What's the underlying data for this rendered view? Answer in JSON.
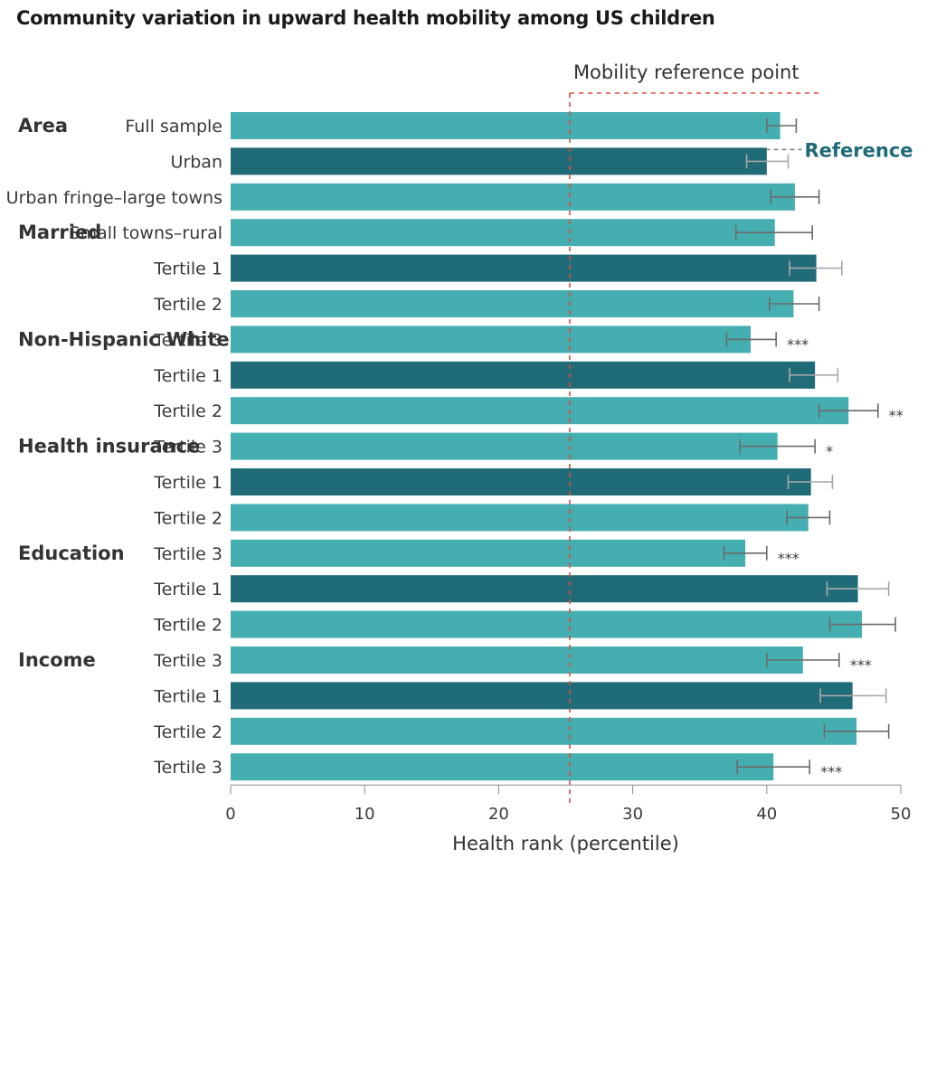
{
  "chart_data": {
    "type": "bar",
    "orientation": "horizontal",
    "title": "Community variation in upward health mobility among US children",
    "xlabel": "Health rank (percentile)",
    "xlim": [
      0,
      50
    ],
    "xticks": [
      0,
      10,
      20,
      30,
      40,
      50
    ],
    "grid": false,
    "reference_line": {
      "value": 25.3,
      "label": "Mobility reference point",
      "color": "#e04a3c"
    },
    "reference_label": "Reference",
    "colors": {
      "reference": "#1f6b77",
      "comparison": "#45aeb1",
      "error_bar": "#6b6b6b",
      "reference_error_bar": "#a9a9a9"
    },
    "rows": [
      {
        "group": "",
        "label": "Full sample",
        "value": 41.0,
        "ci": [
          40.0,
          42.2
        ],
        "is_reference": false,
        "sig": ""
      },
      {
        "group": "Area",
        "label": "Urban",
        "value": 40.0,
        "ci": [
          38.5,
          41.6
        ],
        "is_reference": true,
        "sig": ""
      },
      {
        "group": "Area",
        "label": "Urban fringe–large towns",
        "value": 42.1,
        "ci": [
          40.3,
          43.9
        ],
        "is_reference": false,
        "sig": ""
      },
      {
        "group": "Area",
        "label": "Small towns–rural",
        "value": 40.6,
        "ci": [
          37.7,
          43.4
        ],
        "is_reference": false,
        "sig": ""
      },
      {
        "group": "Married",
        "label": "Tertile 1",
        "value": 43.7,
        "ci": [
          41.7,
          45.6
        ],
        "is_reference": true,
        "sig": ""
      },
      {
        "group": "Married",
        "label": "Tertile 2",
        "value": 42.0,
        "ci": [
          40.2,
          43.9
        ],
        "is_reference": false,
        "sig": ""
      },
      {
        "group": "Married",
        "label": "Tertile 3",
        "value": 38.8,
        "ci": [
          37.0,
          40.7
        ],
        "is_reference": false,
        "sig": "***"
      },
      {
        "group": "Non-Hispanic White",
        "label": "Tertile 1",
        "value": 43.6,
        "ci": [
          41.7,
          45.3
        ],
        "is_reference": true,
        "sig": ""
      },
      {
        "group": "Non-Hispanic White",
        "label": "Tertile 2",
        "value": 46.1,
        "ci": [
          43.9,
          48.3
        ],
        "is_reference": false,
        "sig": "**"
      },
      {
        "group": "Non-Hispanic White",
        "label": "Tertile 3",
        "value": 40.8,
        "ci": [
          38.0,
          43.6
        ],
        "is_reference": false,
        "sig": "*"
      },
      {
        "group": "Health insurance",
        "label": "Tertile 1",
        "value": 43.3,
        "ci": [
          41.6,
          44.9
        ],
        "is_reference": true,
        "sig": ""
      },
      {
        "group": "Health insurance",
        "label": "Tertile 2",
        "value": 43.1,
        "ci": [
          41.5,
          44.7
        ],
        "is_reference": false,
        "sig": ""
      },
      {
        "group": "Health insurance",
        "label": "Tertile 3",
        "value": 38.4,
        "ci": [
          36.8,
          40.0
        ],
        "is_reference": false,
        "sig": "***"
      },
      {
        "group": "Education",
        "label": "Tertile 1",
        "value": 46.8,
        "ci": [
          44.5,
          49.1
        ],
        "is_reference": true,
        "sig": ""
      },
      {
        "group": "Education",
        "label": "Tertile 2",
        "value": 47.1,
        "ci": [
          44.7,
          49.6
        ],
        "is_reference": false,
        "sig": ""
      },
      {
        "group": "Education",
        "label": "Tertile 3",
        "value": 42.7,
        "ci": [
          40.0,
          45.4
        ],
        "is_reference": false,
        "sig": "***"
      },
      {
        "group": "Income",
        "label": "Tertile 1",
        "value": 46.4,
        "ci": [
          44.0,
          48.9
        ],
        "is_reference": true,
        "sig": ""
      },
      {
        "group": "Income",
        "label": "Tertile 2",
        "value": 46.7,
        "ci": [
          44.3,
          49.1
        ],
        "is_reference": false,
        "sig": ""
      },
      {
        "group": "Income",
        "label": "Tertile 3",
        "value": 40.5,
        "ci": [
          37.8,
          43.2
        ],
        "is_reference": false,
        "sig": "***"
      }
    ]
  }
}
